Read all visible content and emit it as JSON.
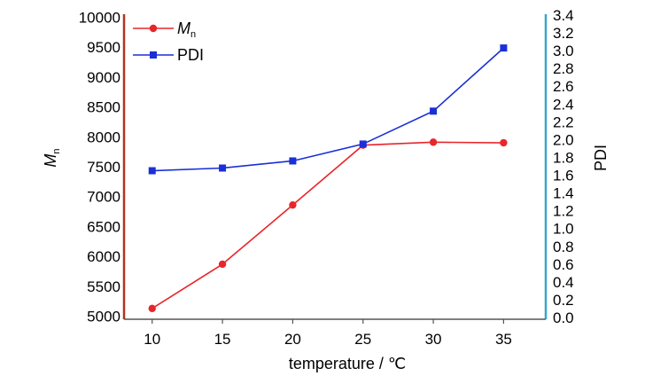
{
  "chart_data": {
    "type": "line",
    "x": [
      10,
      15,
      20,
      25,
      30,
      35
    ],
    "xlim": [
      8,
      38
    ],
    "xticks": [
      "10",
      "15",
      "20",
      "25",
      "30",
      "35"
    ],
    "xlabel": "temperature / ℃",
    "ylabel_left": {
      "main": "M",
      "sub": "n"
    },
    "ylabel_right": "PDI",
    "ylim_left": [
      4950,
      10050
    ],
    "yticks_left": [
      "5000",
      "5500",
      "6000",
      "6500",
      "7000",
      "7500",
      "8000",
      "8500",
      "9000",
      "9500",
      "10000"
    ],
    "ylim_right": [
      -0.02,
      3.41
    ],
    "yticks_right": [
      "0.0",
      "0.2",
      "0.4",
      "0.6",
      "0.8",
      "1.0",
      "1.2",
      "1.4",
      "1.6",
      "1.8",
      "2.0",
      "2.2",
      "2.4",
      "2.6",
      "2.8",
      "3.0",
      "3.2",
      "3.4"
    ],
    "grid": false,
    "legend_position": "top-left",
    "series": [
      {
        "name": "M_n",
        "label_main": "M",
        "label_sub": "n",
        "axis": "left",
        "marker": "circle",
        "color": "#e8262a",
        "values": [
          5130,
          5870,
          6860,
          7860,
          7910,
          7900
        ]
      },
      {
        "name": "PDI",
        "axis": "right",
        "marker": "square",
        "color": "#1a2fd6",
        "values": [
          1.65,
          1.68,
          1.76,
          1.95,
          2.32,
          3.03
        ]
      }
    ],
    "axis_colors": {
      "left": "#b5331f",
      "right": "#3aa6c9"
    }
  }
}
